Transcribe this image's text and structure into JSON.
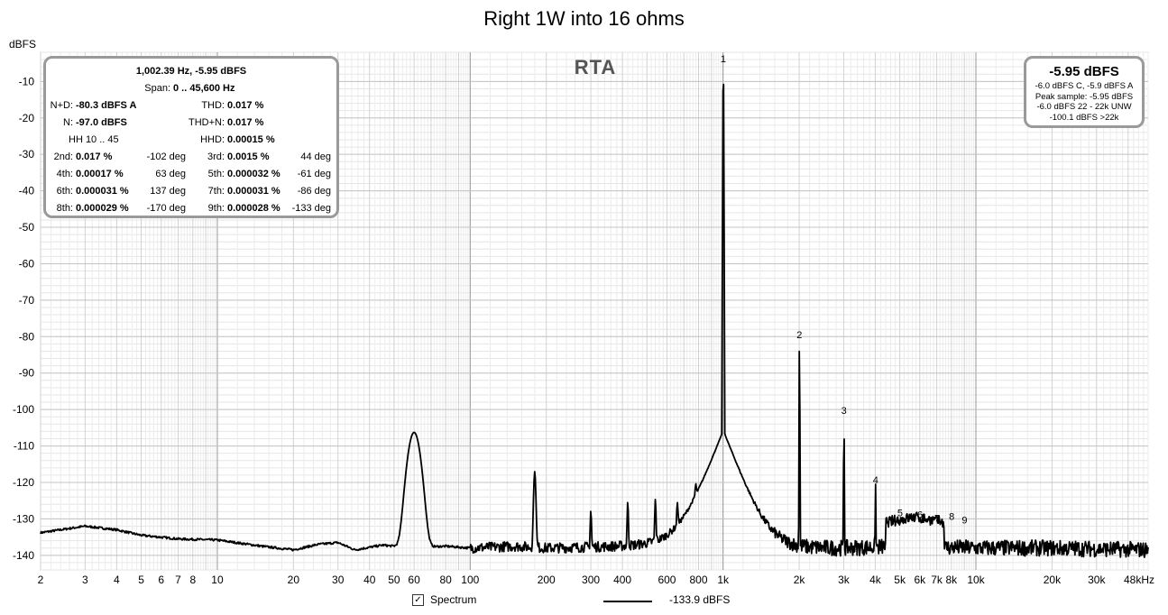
{
  "chart_data": {
    "type": "line",
    "title": "Right 1W into 16 ohms",
    "ylabel": "dBFS",
    "xlabel": "",
    "x_scale": "log",
    "xlim": [
      2,
      48000
    ],
    "ylim": [
      -144,
      -2
    ],
    "grid": true,
    "x_ticks": [
      {
        "value": 2,
        "label": "2"
      },
      {
        "value": 3,
        "label": "3"
      },
      {
        "value": 4,
        "label": "4"
      },
      {
        "value": 5,
        "label": "5"
      },
      {
        "value": 6,
        "label": "6"
      },
      {
        "value": 7,
        "label": "7"
      },
      {
        "value": 8,
        "label": "8"
      },
      {
        "value": 10,
        "label": "10"
      },
      {
        "value": 20,
        "label": "20"
      },
      {
        "value": 30,
        "label": "30"
      },
      {
        "value": 40,
        "label": "40"
      },
      {
        "value": 50,
        "label": "50"
      },
      {
        "value": 60,
        "label": "60"
      },
      {
        "value": 80,
        "label": "80"
      },
      {
        "value": 100,
        "label": "100"
      },
      {
        "value": 200,
        "label": "200"
      },
      {
        "value": 300,
        "label": "300"
      },
      {
        "value": 400,
        "label": "400"
      },
      {
        "value": 600,
        "label": "600"
      },
      {
        "value": 800,
        "label": "800"
      },
      {
        "value": 1000,
        "label": "1k"
      },
      {
        "value": 2000,
        "label": "2k"
      },
      {
        "value": 3000,
        "label": "3k"
      },
      {
        "value": 4000,
        "label": "4k"
      },
      {
        "value": 5000,
        "label": "5k"
      },
      {
        "value": 6000,
        "label": "6k"
      },
      {
        "value": 7000,
        "label": "7k"
      },
      {
        "value": 8000,
        "label": "8k"
      },
      {
        "value": 10000,
        "label": "10k"
      },
      {
        "value": 20000,
        "label": "20k"
      },
      {
        "value": 30000,
        "label": "30k"
      },
      {
        "value": 48000,
        "label": "48kHz"
      }
    ],
    "y_ticks": [
      {
        "value": -10,
        "label": "-10"
      },
      {
        "value": -20,
        "label": "-20"
      },
      {
        "value": -30,
        "label": "-30"
      },
      {
        "value": -40,
        "label": "-40"
      },
      {
        "value": -50,
        "label": "-50"
      },
      {
        "value": -60,
        "label": "-60"
      },
      {
        "value": -70,
        "label": "-70"
      },
      {
        "value": -80,
        "label": "-80"
      },
      {
        "value": -90,
        "label": "-90"
      },
      {
        "value": -100,
        "label": "-100"
      },
      {
        "value": -110,
        "label": "-110"
      },
      {
        "value": -120,
        "label": "-120"
      },
      {
        "value": -130,
        "label": "-130"
      },
      {
        "value": -140,
        "label": "-140"
      }
    ],
    "series": [
      {
        "name": "Spectrum",
        "color": "#000000",
        "baseline": [
          [
            2,
            -133.8
          ],
          [
            3,
            -132
          ],
          [
            4,
            -133
          ],
          [
            5,
            -134.5
          ],
          [
            7,
            -135.5
          ],
          [
            10,
            -135.8
          ],
          [
            15,
            -137.5
          ],
          [
            20,
            -138.5
          ],
          [
            25,
            -137
          ],
          [
            30,
            -136.5
          ],
          [
            35,
            -138.5
          ],
          [
            40,
            -137.8
          ],
          [
            45,
            -137.2
          ],
          [
            50,
            -137.5
          ],
          [
            54,
            -138
          ],
          [
            80,
            -137.5
          ],
          [
            100,
            -138
          ],
          [
            150,
            -137.5
          ],
          [
            200,
            -138
          ],
          [
            400,
            -137.5
          ],
          [
            600,
            -137
          ],
          [
            800,
            -136.5
          ],
          [
            1100,
            -137.5
          ],
          [
            2000,
            -138
          ],
          [
            3000,
            -138
          ],
          [
            5000,
            -137.5
          ],
          [
            10000,
            -138
          ],
          [
            20000,
            -138
          ],
          [
            48000,
            -138.5
          ]
        ],
        "peaks": [
          {
            "x": 60,
            "y": -106.5,
            "width": 0.028
          },
          {
            "x": 180,
            "y": -118,
            "width": 0.005
          },
          {
            "x": 300,
            "y": -131,
            "width": 0.003
          },
          {
            "x": 420,
            "y": -128,
            "width": 0.003
          },
          {
            "x": 540,
            "y": -127.5,
            "width": 0.003
          },
          {
            "x": 660,
            "y": -131,
            "width": 0.003
          },
          {
            "x": 780,
            "y": -131,
            "width": 0.003
          },
          {
            "x": 1002.39,
            "y": -5.95,
            "width": 0.0015
          },
          {
            "x": 2005,
            "y": -81.6,
            "width": 0.0012
          },
          {
            "x": 3007,
            "y": -102.5,
            "width": 0.0012
          },
          {
            "x": 4010,
            "y": -121.5,
            "width": 0.0012
          }
        ],
        "hump": {
          "x0": 4400,
          "x1": 7500,
          "y": -129.5
        },
        "harmonic_labels": [
          {
            "n": "1",
            "x": 1002.39,
            "y": -5.95
          },
          {
            "n": "2",
            "x": 2005,
            "y": -81.6
          },
          {
            "n": "3",
            "x": 3007,
            "y": -102.5
          },
          {
            "n": "4",
            "x": 4010,
            "y": -121.5
          },
          {
            "n": "5",
            "x": 5012,
            "y": -130.5
          },
          {
            "n": "6",
            "x": 6014,
            "y": -131
          },
          {
            "n": "7",
            "x": 7017,
            "y": -132
          },
          {
            "n": "8",
            "x": 8019,
            "y": -131.5
          },
          {
            "n": "9",
            "x": 9022,
            "y": -132.5
          }
        ]
      }
    ],
    "legend": {
      "label": "Spectrum",
      "checked": true,
      "checkmark": "✓",
      "value": "-133.9 dBFS"
    }
  },
  "overlay": {
    "name": "RTA",
    "header": "1,002.39 Hz, -5.95 dBFS",
    "span_label": "Span:",
    "span_value": "0 .. 45,600 Hz",
    "nd_label": "N+D:",
    "nd_value": "-80.3 dBFS A",
    "thd_label": "THD:",
    "thd_value": "0.017 %",
    "n_label": "N:",
    "n_value": "-97.0 dBFS",
    "thdn_label": "THD+N:",
    "thdn_value": "0.017 %",
    "hh_label": "HH 10 .. 45",
    "hhd_label": "HHD:",
    "hhd_value": "0.00015 %",
    "harmonics": [
      {
        "label": "2nd:",
        "value": "0.017 %",
        "phase": "-102 deg"
      },
      {
        "label": "3rd:",
        "value": "0.0015 %",
        "phase": "44 deg"
      },
      {
        "label": "4th:",
        "value": "0.00017 %",
        "phase": "63 deg"
      },
      {
        "label": "5th:",
        "value": "0.000032 %",
        "phase": "-61 deg"
      },
      {
        "label": "6th:",
        "value": "0.000031 %",
        "phase": "137 deg"
      },
      {
        "label": "7th:",
        "value": "0.000031 %",
        "phase": "-86 deg"
      },
      {
        "label": "8th:",
        "value": "0.000029 %",
        "phase": "-170 deg"
      },
      {
        "label": "9th:",
        "value": "0.000028 %",
        "phase": "-133 deg"
      }
    ]
  },
  "level_panel": {
    "main": "-5.95 dBFS",
    "lines": [
      "-6.0 dBFS C, -5.9 dBFS A",
      "Peak sample: -5.95 dBFS",
      "-6.0 dBFS 22 - 22k UNW",
      "-100.1 dBFS >22k"
    ]
  }
}
